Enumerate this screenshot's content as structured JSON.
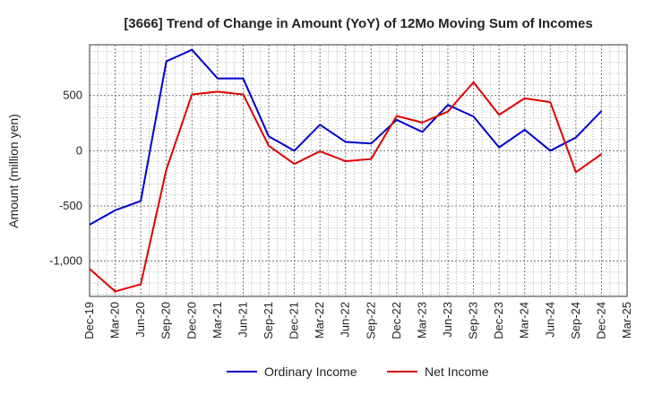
{
  "chart_data": {
    "type": "line",
    "title": "[3666]  Trend of Change in Amount (YoY) of 12Mo Moving Sum of Incomes",
    "xlabel": "",
    "ylabel": "Amount (million yen)",
    "categories": [
      "Dec-19",
      "Mar-20",
      "Jun-20",
      "Sep-20",
      "Dec-20",
      "Mar-21",
      "Jun-21",
      "Sep-21",
      "Dec-21",
      "Mar-22",
      "Jun-22",
      "Sep-22",
      "Dec-22",
      "Mar-23",
      "Jun-23",
      "Sep-23",
      "Dec-23",
      "Mar-24",
      "Jun-24",
      "Sep-24",
      "Dec-24",
      "Mar-25"
    ],
    "ylim": [
      -1320,
      960
    ],
    "yticks": [
      500,
      0,
      -500,
      -1000
    ],
    "ytick_labels": [
      "500",
      "0",
      "-500",
      "-1,000"
    ],
    "grid": true,
    "legend_position": "bottom",
    "series": [
      {
        "name": "Ordinary Income",
        "color": "#0000cc",
        "values": [
          -670,
          -540,
          -455,
          810,
          915,
          655,
          655,
          130,
          0,
          235,
          80,
          65,
          280,
          170,
          415,
          310,
          30,
          190,
          0,
          120,
          360,
          null
        ]
      },
      {
        "name": "Net Income",
        "color": "#dd0000",
        "values": [
          -1070,
          -1275,
          -1210,
          -170,
          510,
          535,
          510,
          45,
          -120,
          -5,
          -95,
          -75,
          315,
          255,
          355,
          620,
          325,
          475,
          440,
          -195,
          -30,
          null
        ]
      }
    ]
  }
}
